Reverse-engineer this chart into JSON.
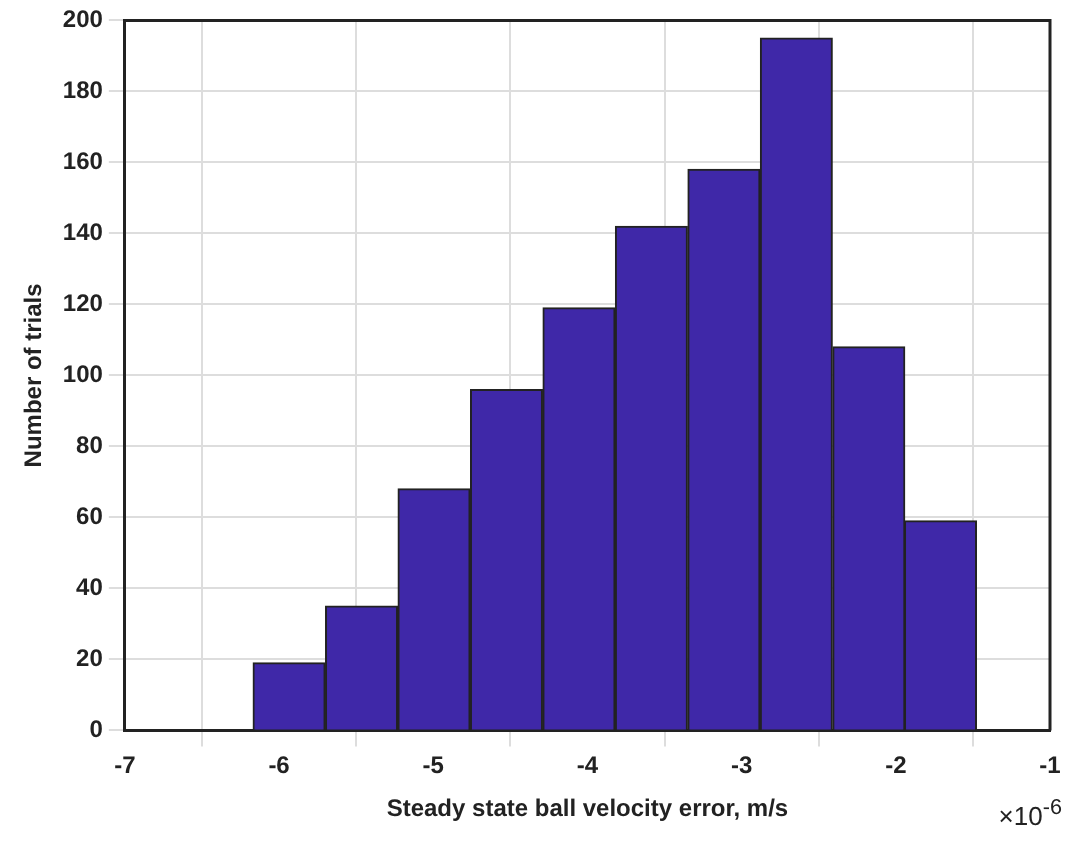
{
  "chart_data": {
    "type": "histogram",
    "xlabel": "Steady state ball velocity error, m/s",
    "ylabel": "Number of trials",
    "bins": [
      -6.17,
      -5.7,
      -5.23,
      -4.76,
      -4.29,
      -3.82,
      -3.35,
      -2.88,
      -2.41,
      -1.94,
      -1.48
    ],
    "values": [
      19,
      35,
      68,
      96,
      119,
      142,
      158,
      195,
      108,
      59
    ],
    "color": "#3f28a8",
    "xlim": [
      -7,
      -1
    ],
    "xticks": [
      -7,
      -6,
      -5,
      -4,
      -3,
      -2,
      -1
    ],
    "ylim": [
      0,
      200
    ],
    "yticks": [
      0,
      20,
      40,
      60,
      80,
      100,
      120,
      140,
      160,
      180,
      200
    ],
    "grid": true,
    "annotations": [
      "×10$^{-6}$"
    ]
  }
}
